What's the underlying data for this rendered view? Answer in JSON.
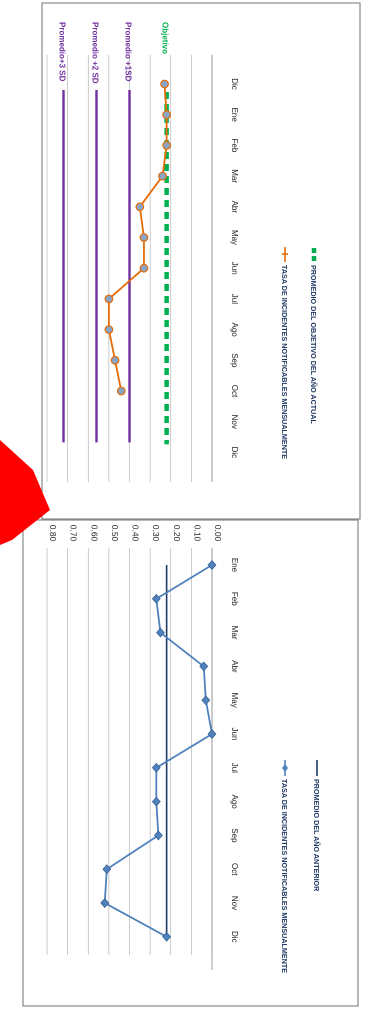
{
  "chart_data": [
    {
      "type": "line",
      "orientation": "rotated-90-clockwise",
      "categories": [
        "Ene",
        "Feb",
        "Mar",
        "Abr",
        "May",
        "Jun",
        "Jul",
        "Ago",
        "Sep",
        "Oct",
        "Nov",
        "Dic"
      ],
      "y_ticks": [
        "0.80",
        "0.70",
        "0.60",
        "0.50",
        "0.40",
        "0.30",
        "0.20",
        "0.10",
        "0.00"
      ],
      "ylim": [
        0,
        0.8
      ],
      "grid": true,
      "series": [
        {
          "name": "TASA DE INCIDENTES NOTIFICABLES MENSUALMENTE",
          "color": "#4f81bd",
          "style": "line-diamond",
          "values": [
            0.0,
            0.27,
            0.25,
            0.04,
            0.03,
            0.0,
            0.27,
            0.27,
            0.26,
            0.51,
            0.52,
            0.22
          ]
        },
        {
          "name": "PROMEDIO DEL AÑO ANTERIOR",
          "color": "#1f3864",
          "style": "line",
          "values": [
            0.22,
            0.22,
            0.22,
            0.22,
            0.22,
            0.22,
            0.22,
            0.22,
            0.22,
            0.22,
            0.22,
            0.22
          ]
        }
      ],
      "legend_position": "bottom"
    },
    {
      "type": "line",
      "orientation": "rotated-90-clockwise",
      "categories": [
        "Dic",
        "Ene",
        "Feb",
        "Mar",
        "Abr",
        "May",
        "Jun",
        "Jul",
        "Ago",
        "Sep",
        "Oct",
        "Nov",
        "Dic"
      ],
      "ylim": [
        0,
        0.8
      ],
      "grid": true,
      "reference_lines": [
        {
          "label": "Promedio+3 SD",
          "value": 0.72,
          "color": "#7030a0"
        },
        {
          "label": "Promedio +2 SD",
          "value": 0.56,
          "color": "#7030a0"
        },
        {
          "label": "Promedio +1SD",
          "value": 0.4,
          "color": "#7030a0"
        },
        {
          "label": "Objetivo",
          "value": 0.22,
          "color": "#00b050"
        }
      ],
      "series": [
        {
          "name": "TASA DE INCIDENTES NOTIFICABLES MENSUALMENTE",
          "color": "#e36c09",
          "style": "line-marker",
          "values": [
            0.23,
            0.22,
            0.22,
            0.24,
            0.35,
            0.33,
            0.33,
            0.5,
            0.5,
            0.47,
            0.44,
            null,
            null
          ]
        },
        {
          "name": "PROMEDIO DEL OBJETIVO DEL AÑO ACTUAL",
          "color": "#00b050",
          "style": "dashed",
          "values": [
            0.22,
            0.22,
            0.22,
            0.22,
            0.22,
            0.22,
            0.22,
            0.22,
            0.22,
            0.22,
            0.22,
            0.22,
            0.22
          ]
        }
      ],
      "legend_position": "bottom"
    }
  ],
  "overlay": {
    "arrow_color": "#ff0000"
  }
}
